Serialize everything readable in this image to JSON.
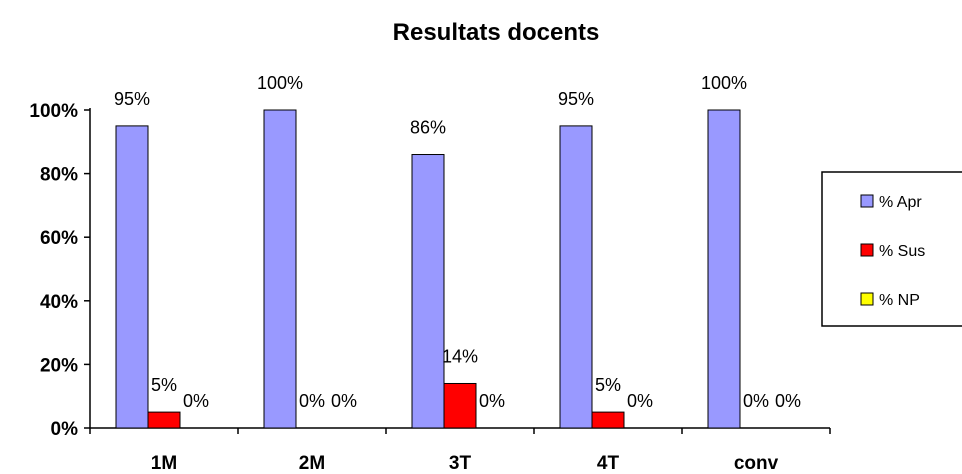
{
  "chart_data": {
    "type": "bar",
    "title": "Resultats docents",
    "categories": [
      "1M",
      "2M",
      "3T",
      "4T",
      "conv"
    ],
    "series": [
      {
        "name": "% Apr",
        "color": "#9999ff",
        "values": [
          95,
          100,
          86,
          95,
          100
        ],
        "labels": [
          "95%",
          "100%",
          "86%",
          "95%",
          "100%"
        ]
      },
      {
        "name": "% Sus",
        "color": "#ff0000",
        "values": [
          5,
          0,
          14,
          5,
          0
        ],
        "labels": [
          "5%",
          "0%",
          "14%",
          "5%",
          "0%"
        ]
      },
      {
        "name": "% NP",
        "color": "#ffff00",
        "values": [
          0,
          0,
          0,
          0,
          0
        ],
        "labels": [
          "0%",
          "0%",
          "0%",
          "0%",
          "0%"
        ]
      }
    ],
    "yticks": [
      "0%",
      "20%",
      "40%",
      "60%",
      "80%",
      "100%"
    ],
    "ylim": [
      0,
      100
    ],
    "legend_position": "right",
    "grid": false
  }
}
